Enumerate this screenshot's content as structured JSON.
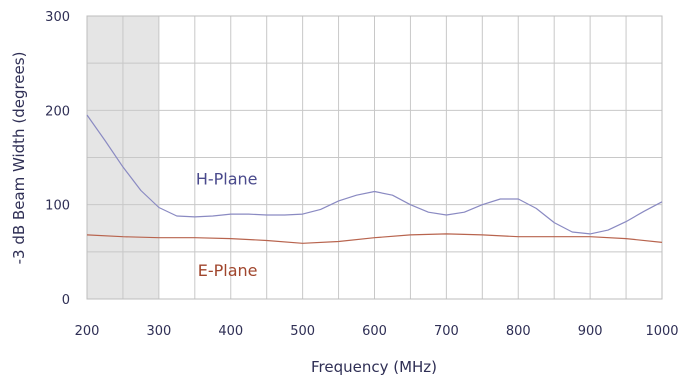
{
  "chart_data": {
    "type": "line",
    "title": "",
    "xlabel": "Frequency (MHz)",
    "ylabel": "-3 dB Beam Width (degrees)",
    "xlim": [
      200,
      1000
    ],
    "ylim": [
      0,
      300
    ],
    "x_ticks": [
      "200",
      "300",
      "400",
      "500",
      "600",
      "700",
      "800",
      "900",
      "1000"
    ],
    "y_ticks": [
      "0",
      "100",
      "200",
      "300"
    ],
    "grid": true,
    "shaded_range": [
      200,
      300
    ],
    "series": [
      {
        "name": "H-Plane",
        "color": "#8a8ac2",
        "x": [
          200,
          225,
          250,
          275,
          300,
          325,
          350,
          375,
          400,
          425,
          450,
          475,
          500,
          525,
          550,
          575,
          600,
          625,
          650,
          675,
          700,
          725,
          750,
          775,
          800,
          825,
          850,
          875,
          900,
          925,
          950,
          975,
          1000
        ],
        "y": [
          195,
          168,
          140,
          115,
          97,
          88,
          87,
          88,
          90,
          90,
          89,
          89,
          90,
          95,
          104,
          110,
          114,
          110,
          100,
          92,
          89,
          92,
          100,
          106,
          106,
          96,
          81,
          71,
          69,
          73,
          82,
          93,
          103
        ]
      },
      {
        "name": "E-Plane",
        "color": "#b8644e",
        "x": [
          200,
          250,
          300,
          350,
          400,
          450,
          500,
          550,
          600,
          650,
          700,
          750,
          800,
          850,
          900,
          950,
          1000
        ],
        "y": [
          68,
          66,
          65,
          65,
          64,
          62,
          59,
          61,
          65,
          68,
          69,
          68,
          66,
          66,
          66,
          64,
          60
        ]
      }
    ]
  }
}
